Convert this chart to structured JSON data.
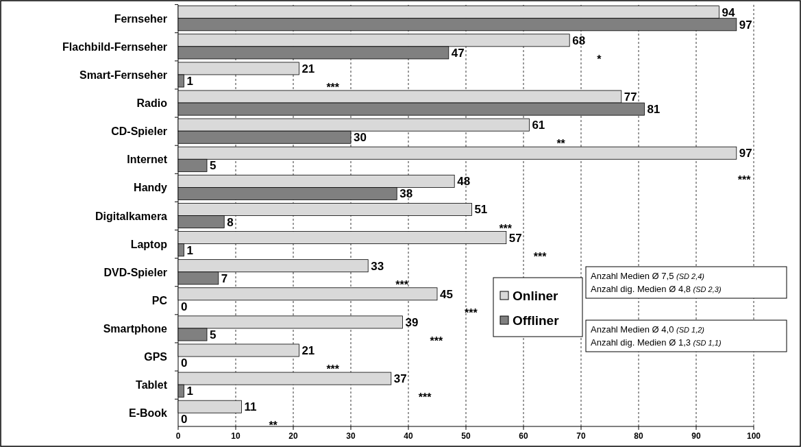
{
  "chart_data": {
    "type": "bar",
    "orientation": "horizontal",
    "categories": [
      "Fernseher",
      "Flachbild-Fernseher",
      "Smart-Fernseher",
      "Radio",
      "CD-Spieler",
      "Internet",
      "Handy",
      "Digitalkamera",
      "Laptop",
      "DVD-Spieler",
      "PC",
      "Smartphone",
      "GPS",
      "Tablet",
      "E-Book"
    ],
    "series": [
      {
        "name": "Onliner",
        "color": "#d9d9d9",
        "values": [
          94,
          68,
          21,
          77,
          61,
          97,
          48,
          51,
          57,
          33,
          45,
          39,
          21,
          37,
          11
        ]
      },
      {
        "name": "Offliner",
        "color": "#808080",
        "values": [
          97,
          47,
          1,
          81,
          30,
          5,
          38,
          8,
          1,
          7,
          0,
          5,
          0,
          1,
          0
        ]
      }
    ],
    "xlim": [
      0,
      100
    ],
    "xticks": [
      0,
      10,
      20,
      30,
      40,
      50,
      60,
      70,
      80,
      90,
      100
    ],
    "grid": "x",
    "legend": "right",
    "data_labels": true,
    "annotations": [
      "*",
      "***",
      "**",
      "***",
      "***",
      "***",
      "***",
      "***",
      "***",
      "***",
      "***",
      "**",
      "Anzahl Medien Ø 7,5 (SD 2,4)",
      "Anzahl dig. Medien Ø 4,8 (SD 2,3)",
      "Anzahl Medien Ø 4,0 (SD 1,2)",
      "Anzahl dig. Medien Ø 1,3 (SD 1,1)"
    ]
  }
}
